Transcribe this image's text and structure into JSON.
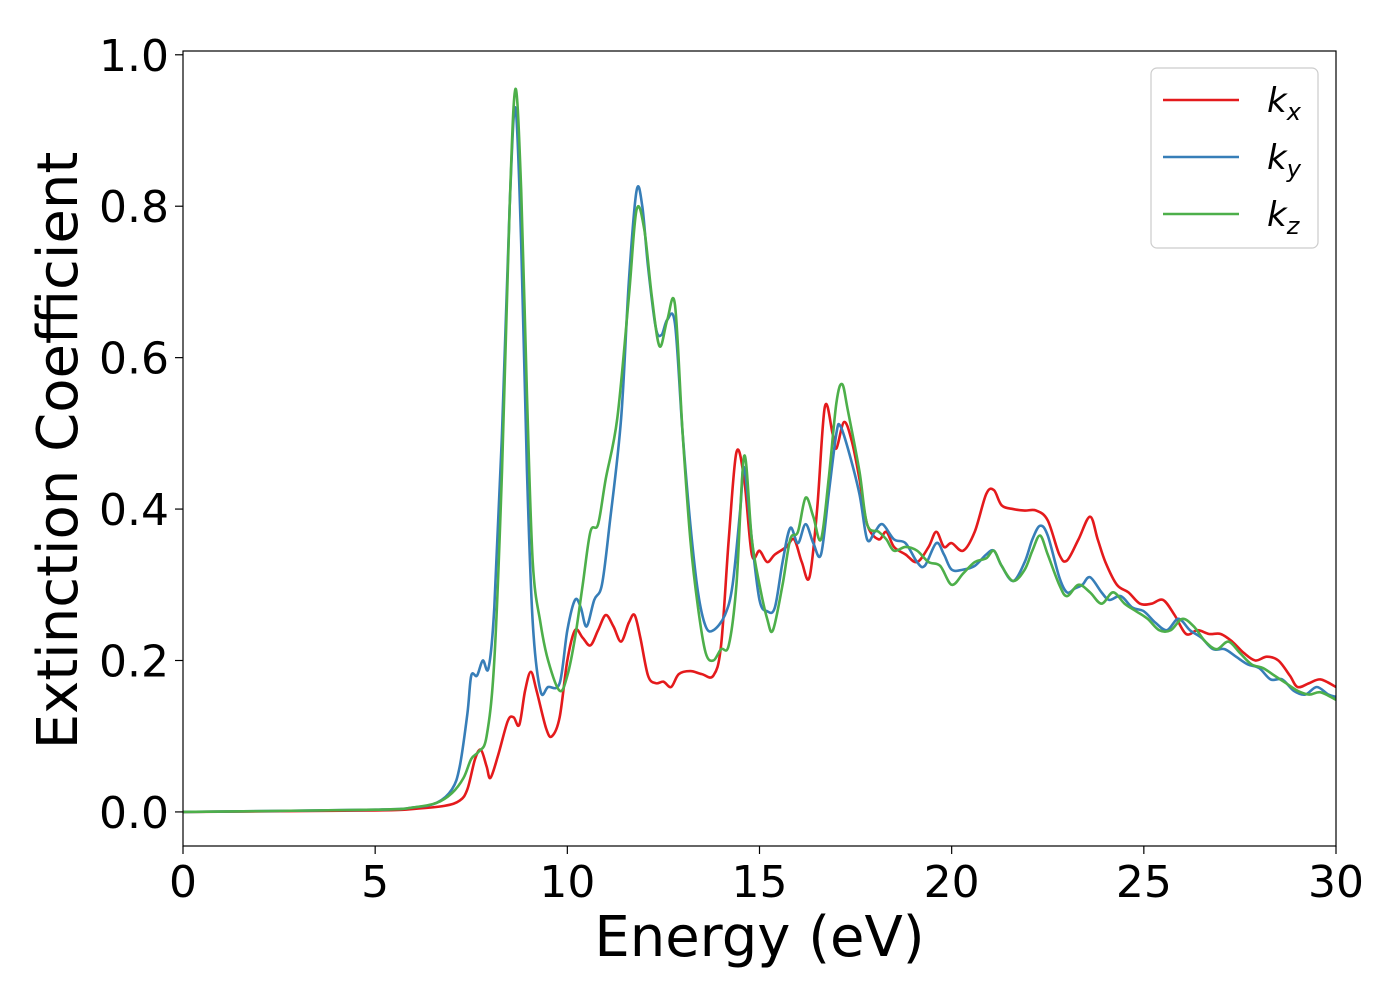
{
  "chart_data": {
    "type": "line",
    "xlabel": "Energy (eV)",
    "ylabel": "Extinction Coefficient",
    "xlim": [
      0,
      30
    ],
    "ylim": [
      -0.045,
      1.005
    ],
    "xticks": [
      0,
      5,
      10,
      15,
      20,
      25,
      30
    ],
    "xtick_labels": [
      "0",
      "5",
      "10",
      "15",
      "20",
      "25",
      "30"
    ],
    "yticks": [
      0.0,
      0.2,
      0.4,
      0.6,
      0.8,
      1.0
    ],
    "ytick_labels": [
      "0.0",
      "0.2",
      "0.4",
      "0.6",
      "0.8",
      "1.0"
    ],
    "grid": false,
    "legend_position": "top-right",
    "series": [
      {
        "name": "k",
        "subscript": "x",
        "color": "#e41a1c",
        "points": [
          [
            0,
            0.0
          ],
          [
            5,
            0.002
          ],
          [
            6,
            0.004
          ],
          [
            6.8,
            0.008
          ],
          [
            7.2,
            0.015
          ],
          [
            7.4,
            0.03
          ],
          [
            7.6,
            0.07
          ],
          [
            7.75,
            0.082
          ],
          [
            7.9,
            0.06
          ],
          [
            8.0,
            0.045
          ],
          [
            8.2,
            0.075
          ],
          [
            8.45,
            0.12
          ],
          [
            8.6,
            0.125
          ],
          [
            8.75,
            0.115
          ],
          [
            8.9,
            0.16
          ],
          [
            9.05,
            0.185
          ],
          [
            9.2,
            0.16
          ],
          [
            9.45,
            0.11
          ],
          [
            9.6,
            0.1
          ],
          [
            9.8,
            0.125
          ],
          [
            10.0,
            0.2
          ],
          [
            10.2,
            0.24
          ],
          [
            10.4,
            0.23
          ],
          [
            10.6,
            0.22
          ],
          [
            10.8,
            0.24
          ],
          [
            11.0,
            0.26
          ],
          [
            11.2,
            0.245
          ],
          [
            11.4,
            0.225
          ],
          [
            11.6,
            0.25
          ],
          [
            11.75,
            0.26
          ],
          [
            11.9,
            0.23
          ],
          [
            12.1,
            0.18
          ],
          [
            12.3,
            0.17
          ],
          [
            12.5,
            0.172
          ],
          [
            12.7,
            0.165
          ],
          [
            12.9,
            0.182
          ],
          [
            13.2,
            0.186
          ],
          [
            13.5,
            0.182
          ],
          [
            13.8,
            0.18
          ],
          [
            14.0,
            0.22
          ],
          [
            14.2,
            0.36
          ],
          [
            14.4,
            0.475
          ],
          [
            14.6,
            0.44
          ],
          [
            14.8,
            0.34
          ],
          [
            15.0,
            0.345
          ],
          [
            15.2,
            0.33
          ],
          [
            15.4,
            0.34
          ],
          [
            15.7,
            0.35
          ],
          [
            15.9,
            0.36
          ],
          [
            16.1,
            0.33
          ],
          [
            16.3,
            0.31
          ],
          [
            16.5,
            0.4
          ],
          [
            16.7,
            0.535
          ],
          [
            16.9,
            0.5
          ],
          [
            17.0,
            0.48
          ],
          [
            17.2,
            0.515
          ],
          [
            17.4,
            0.49
          ],
          [
            17.6,
            0.44
          ],
          [
            17.8,
            0.38
          ],
          [
            18.1,
            0.36
          ],
          [
            18.3,
            0.37
          ],
          [
            18.5,
            0.35
          ],
          [
            18.8,
            0.34
          ],
          [
            19.1,
            0.33
          ],
          [
            19.4,
            0.35
          ],
          [
            19.6,
            0.37
          ],
          [
            19.8,
            0.35
          ],
          [
            20.0,
            0.355
          ],
          [
            20.3,
            0.345
          ],
          [
            20.6,
            0.37
          ],
          [
            20.9,
            0.42
          ],
          [
            21.1,
            0.425
          ],
          [
            21.3,
            0.405
          ],
          [
            21.6,
            0.4
          ],
          [
            21.9,
            0.398
          ],
          [
            22.2,
            0.398
          ],
          [
            22.5,
            0.385
          ],
          [
            22.8,
            0.34
          ],
          [
            23.0,
            0.332
          ],
          [
            23.3,
            0.36
          ],
          [
            23.6,
            0.39
          ],
          [
            23.8,
            0.36
          ],
          [
            24.0,
            0.33
          ],
          [
            24.3,
            0.3
          ],
          [
            24.6,
            0.29
          ],
          [
            24.9,
            0.275
          ],
          [
            25.2,
            0.275
          ],
          [
            25.5,
            0.28
          ],
          [
            25.8,
            0.26
          ],
          [
            26.1,
            0.235
          ],
          [
            26.4,
            0.24
          ],
          [
            26.7,
            0.235
          ],
          [
            27.0,
            0.235
          ],
          [
            27.3,
            0.225
          ],
          [
            27.6,
            0.21
          ],
          [
            27.9,
            0.2
          ],
          [
            28.2,
            0.205
          ],
          [
            28.5,
            0.2
          ],
          [
            28.8,
            0.18
          ],
          [
            29.0,
            0.165
          ],
          [
            29.3,
            0.17
          ],
          [
            29.6,
            0.175
          ],
          [
            30,
            0.165
          ]
        ]
      },
      {
        "name": "k",
        "subscript": "y",
        "color": "#377eb8",
        "points": [
          [
            0,
            0.0
          ],
          [
            5,
            0.003
          ],
          [
            6,
            0.006
          ],
          [
            6.6,
            0.012
          ],
          [
            7.0,
            0.03
          ],
          [
            7.2,
            0.06
          ],
          [
            7.4,
            0.13
          ],
          [
            7.5,
            0.18
          ],
          [
            7.65,
            0.18
          ],
          [
            7.8,
            0.2
          ],
          [
            7.95,
            0.19
          ],
          [
            8.1,
            0.27
          ],
          [
            8.3,
            0.5
          ],
          [
            8.5,
            0.8
          ],
          [
            8.65,
            0.93
          ],
          [
            8.8,
            0.75
          ],
          [
            8.95,
            0.45
          ],
          [
            9.1,
            0.25
          ],
          [
            9.3,
            0.16
          ],
          [
            9.5,
            0.165
          ],
          [
            9.8,
            0.17
          ],
          [
            10.0,
            0.24
          ],
          [
            10.2,
            0.28
          ],
          [
            10.35,
            0.27
          ],
          [
            10.5,
            0.245
          ],
          [
            10.7,
            0.28
          ],
          [
            10.9,
            0.3
          ],
          [
            11.1,
            0.38
          ],
          [
            11.4,
            0.52
          ],
          [
            11.6,
            0.7
          ],
          [
            11.8,
            0.82
          ],
          [
            11.95,
            0.8
          ],
          [
            12.1,
            0.72
          ],
          [
            12.3,
            0.64
          ],
          [
            12.45,
            0.63
          ],
          [
            12.6,
            0.65
          ],
          [
            12.8,
            0.645
          ],
          [
            13.0,
            0.5
          ],
          [
            13.2,
            0.38
          ],
          [
            13.4,
            0.29
          ],
          [
            13.6,
            0.245
          ],
          [
            13.8,
            0.24
          ],
          [
            14.1,
            0.26
          ],
          [
            14.3,
            0.3
          ],
          [
            14.5,
            0.4
          ],
          [
            14.6,
            0.455
          ],
          [
            14.8,
            0.36
          ],
          [
            15.0,
            0.28
          ],
          [
            15.2,
            0.265
          ],
          [
            15.4,
            0.27
          ],
          [
            15.6,
            0.33
          ],
          [
            15.8,
            0.375
          ],
          [
            16.0,
            0.355
          ],
          [
            16.2,
            0.38
          ],
          [
            16.4,
            0.355
          ],
          [
            16.6,
            0.34
          ],
          [
            16.8,
            0.42
          ],
          [
            17.0,
            0.5
          ],
          [
            17.1,
            0.51
          ],
          [
            17.3,
            0.48
          ],
          [
            17.6,
            0.42
          ],
          [
            17.8,
            0.36
          ],
          [
            18.0,
            0.37
          ],
          [
            18.2,
            0.38
          ],
          [
            18.5,
            0.36
          ],
          [
            18.8,
            0.355
          ],
          [
            19.1,
            0.33
          ],
          [
            19.3,
            0.325
          ],
          [
            19.6,
            0.355
          ],
          [
            19.8,
            0.34
          ],
          [
            20.0,
            0.32
          ],
          [
            20.3,
            0.32
          ],
          [
            20.6,
            0.325
          ],
          [
            20.9,
            0.34
          ],
          [
            21.1,
            0.345
          ],
          [
            21.3,
            0.325
          ],
          [
            21.6,
            0.305
          ],
          [
            21.9,
            0.33
          ],
          [
            22.1,
            0.36
          ],
          [
            22.3,
            0.378
          ],
          [
            22.5,
            0.365
          ],
          [
            22.8,
            0.31
          ],
          [
            23.0,
            0.29
          ],
          [
            23.2,
            0.295
          ],
          [
            23.4,
            0.3
          ],
          [
            23.6,
            0.31
          ],
          [
            23.9,
            0.29
          ],
          [
            24.1,
            0.28
          ],
          [
            24.4,
            0.285
          ],
          [
            24.7,
            0.27
          ],
          [
            25.0,
            0.265
          ],
          [
            25.3,
            0.25
          ],
          [
            25.6,
            0.24
          ],
          [
            25.9,
            0.255
          ],
          [
            26.2,
            0.24
          ],
          [
            26.5,
            0.23
          ],
          [
            26.8,
            0.215
          ],
          [
            27.1,
            0.215
          ],
          [
            27.4,
            0.205
          ],
          [
            27.7,
            0.195
          ],
          [
            28.0,
            0.19
          ],
          [
            28.3,
            0.175
          ],
          [
            28.6,
            0.175
          ],
          [
            28.9,
            0.16
          ],
          [
            29.2,
            0.155
          ],
          [
            29.5,
            0.165
          ],
          [
            29.8,
            0.155
          ],
          [
            30,
            0.152
          ]
        ]
      },
      {
        "name": "k",
        "subscript": "z",
        "color": "#4daf4a",
        "points": [
          [
            0,
            0.0
          ],
          [
            5,
            0.003
          ],
          [
            6,
            0.006
          ],
          [
            6.6,
            0.012
          ],
          [
            7.0,
            0.025
          ],
          [
            7.3,
            0.045
          ],
          [
            7.5,
            0.07
          ],
          [
            7.7,
            0.08
          ],
          [
            7.9,
            0.1
          ],
          [
            8.1,
            0.2
          ],
          [
            8.3,
            0.45
          ],
          [
            8.5,
            0.8
          ],
          [
            8.65,
            0.955
          ],
          [
            8.8,
            0.82
          ],
          [
            8.95,
            0.55
          ],
          [
            9.1,
            0.33
          ],
          [
            9.3,
            0.25
          ],
          [
            9.5,
            0.2
          ],
          [
            9.8,
            0.16
          ],
          [
            10.0,
            0.18
          ],
          [
            10.2,
            0.23
          ],
          [
            10.4,
            0.3
          ],
          [
            10.6,
            0.37
          ],
          [
            10.8,
            0.38
          ],
          [
            11.0,
            0.44
          ],
          [
            11.3,
            0.52
          ],
          [
            11.6,
            0.68
          ],
          [
            11.8,
            0.795
          ],
          [
            12.0,
            0.77
          ],
          [
            12.2,
            0.68
          ],
          [
            12.4,
            0.615
          ],
          [
            12.6,
            0.65
          ],
          [
            12.8,
            0.67
          ],
          [
            13.0,
            0.5
          ],
          [
            13.2,
            0.36
          ],
          [
            13.4,
            0.27
          ],
          [
            13.6,
            0.21
          ],
          [
            13.8,
            0.2
          ],
          [
            14.0,
            0.215
          ],
          [
            14.2,
            0.22
          ],
          [
            14.4,
            0.3
          ],
          [
            14.6,
            0.47
          ],
          [
            14.8,
            0.36
          ],
          [
            15.0,
            0.3
          ],
          [
            15.2,
            0.255
          ],
          [
            15.35,
            0.24
          ],
          [
            15.6,
            0.3
          ],
          [
            15.8,
            0.36
          ],
          [
            16.0,
            0.37
          ],
          [
            16.2,
            0.415
          ],
          [
            16.4,
            0.39
          ],
          [
            16.6,
            0.36
          ],
          [
            16.8,
            0.44
          ],
          [
            17.0,
            0.54
          ],
          [
            17.15,
            0.565
          ],
          [
            17.3,
            0.53
          ],
          [
            17.6,
            0.45
          ],
          [
            17.8,
            0.38
          ],
          [
            18.1,
            0.37
          ],
          [
            18.3,
            0.36
          ],
          [
            18.5,
            0.345
          ],
          [
            18.8,
            0.35
          ],
          [
            19.1,
            0.345
          ],
          [
            19.4,
            0.33
          ],
          [
            19.7,
            0.325
          ],
          [
            20.0,
            0.3
          ],
          [
            20.3,
            0.315
          ],
          [
            20.6,
            0.33
          ],
          [
            20.9,
            0.335
          ],
          [
            21.1,
            0.345
          ],
          [
            21.3,
            0.325
          ],
          [
            21.6,
            0.305
          ],
          [
            21.9,
            0.32
          ],
          [
            22.1,
            0.345
          ],
          [
            22.3,
            0.365
          ],
          [
            22.5,
            0.34
          ],
          [
            22.8,
            0.3
          ],
          [
            23.0,
            0.285
          ],
          [
            23.3,
            0.3
          ],
          [
            23.6,
            0.29
          ],
          [
            23.9,
            0.275
          ],
          [
            24.2,
            0.29
          ],
          [
            24.5,
            0.275
          ],
          [
            24.8,
            0.265
          ],
          [
            25.1,
            0.255
          ],
          [
            25.4,
            0.24
          ],
          [
            25.7,
            0.24
          ],
          [
            26.0,
            0.255
          ],
          [
            26.3,
            0.245
          ],
          [
            26.6,
            0.225
          ],
          [
            26.9,
            0.215
          ],
          [
            27.2,
            0.225
          ],
          [
            27.5,
            0.21
          ],
          [
            27.8,
            0.195
          ],
          [
            28.1,
            0.19
          ],
          [
            28.4,
            0.18
          ],
          [
            28.7,
            0.17
          ],
          [
            29.0,
            0.16
          ],
          [
            29.3,
            0.155
          ],
          [
            29.6,
            0.158
          ],
          [
            30,
            0.148
          ]
        ]
      }
    ]
  }
}
